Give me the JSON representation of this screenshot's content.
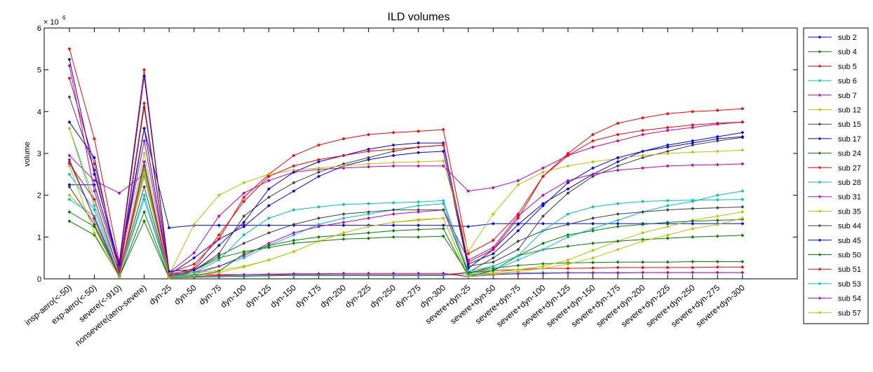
{
  "chart_data": {
    "type": "line",
    "title": "ILD volumes",
    "xlabel": "",
    "ylabel": "volume",
    "y_multiplier_label": "× 10",
    "y_multiplier_exp": "6",
    "ylim": [
      0,
      6
    ],
    "yticks": [
      0,
      1,
      2,
      3,
      4,
      5,
      6
    ],
    "grid": false,
    "legend_position": "outside-right",
    "categories": [
      "insp-aero(<-50)",
      "exp-aero(<-50)",
      "severe(<-910)",
      "nonsevere(aero-severe)",
      "dyn-25",
      "dyn-50",
      "dyn-75",
      "dyn-100",
      "dyn-125",
      "dyn-150",
      "dyn-175",
      "dyn-200",
      "dyn-225",
      "dyn-250",
      "dyn-275",
      "dyn-300",
      "severe+dyn-25",
      "severe+dyn-50",
      "severe+dyn-75",
      "severe+dyn-100",
      "severe+dyn-125",
      "severe+dyn-150",
      "severe+dyn-175",
      "severe+dyn-200",
      "severe+dyn-225",
      "severe+dyn-250",
      "severe+dyn-275",
      "severe+dyn-300"
    ],
    "series": [
      {
        "name": "sub 2",
        "color": "#0000ff",
        "values": [
          2.25,
          2.25,
          0.3,
          3.6,
          1.22,
          1.28,
          1.28,
          1.28,
          1.28,
          1.28,
          1.28,
          1.28,
          1.28,
          1.28,
          1.28,
          1.28,
          1.25,
          1.32,
          1.32,
          1.32,
          1.32,
          1.32,
          1.32,
          1.32,
          1.32,
          1.32,
          1.32,
          1.32
        ]
      },
      {
        "name": "sub 4",
        "color": "#008000",
        "values": [
          1.38,
          1.05,
          0.05,
          1.38,
          0.02,
          0.04,
          0.05,
          0.06,
          0.07,
          0.08,
          0.08,
          0.08,
          0.08,
          0.08,
          0.08,
          0.08,
          0.15,
          0.25,
          0.32,
          0.36,
          0.38,
          0.39,
          0.4,
          0.4,
          0.4,
          0.41,
          0.41,
          0.41
        ]
      },
      {
        "name": "sub 5",
        "color": "#ff0000",
        "values": [
          5.5,
          3.35,
          0.4,
          5.0,
          0.08,
          0.1,
          0.1,
          0.1,
          0.1,
          0.1,
          0.1,
          0.1,
          0.1,
          0.1,
          0.1,
          0.1,
          0.15,
          0.2,
          0.22,
          0.25,
          0.25,
          0.26,
          0.27,
          0.27,
          0.27,
          0.27,
          0.28,
          0.28
        ]
      },
      {
        "name": "sub 6",
        "color": "#00bfbf",
        "values": [
          2.5,
          1.65,
          0.08,
          2.0,
          0.05,
          0.06,
          0.07,
          0.08,
          0.08,
          0.09,
          0.09,
          0.09,
          0.09,
          0.09,
          0.09,
          0.09,
          0.1,
          0.12,
          0.14,
          0.15,
          0.15,
          0.15,
          0.15,
          0.15,
          0.15,
          0.15,
          0.15,
          0.15
        ]
      },
      {
        "name": "sub 7",
        "color": "#bf00bf",
        "values": [
          2.95,
          2.35,
          2.05,
          2.5,
          0.15,
          0.62,
          1.5,
          2.05,
          2.35,
          2.55,
          2.62,
          2.65,
          2.68,
          2.7,
          2.7,
          2.7,
          2.1,
          2.18,
          2.35,
          2.65,
          2.95,
          3.15,
          3.3,
          3.45,
          3.55,
          3.62,
          3.7,
          3.75
        ]
      },
      {
        "name": "sub 12",
        "color": "#bfbf00",
        "values": [
          2.0,
          1.4,
          0.06,
          2.6,
          0.06,
          0.15,
          0.2,
          0.3,
          0.45,
          0.65,
          0.9,
          1.1,
          1.25,
          1.35,
          1.42,
          1.45,
          0.08,
          0.15,
          0.22,
          0.3,
          0.45,
          0.68,
          0.9,
          1.1,
          1.25,
          1.4,
          1.5,
          1.6
        ]
      },
      {
        "name": "sub 15",
        "color": "#404040",
        "values": [
          4.35,
          2.6,
          0.2,
          4.1,
          0.12,
          0.2,
          0.6,
          1.5,
          1.95,
          2.3,
          2.55,
          2.75,
          2.9,
          3.05,
          3.15,
          3.2,
          0.3,
          0.4,
          0.7,
          1.5,
          2.05,
          2.45,
          2.7,
          2.9,
          3.05,
          3.2,
          3.3,
          3.38
        ]
      },
      {
        "name": "sub 17",
        "color": "#0000ff",
        "values": [
          3.75,
          2.9,
          0.15,
          3.6,
          0.1,
          0.5,
          0.95,
          1.25,
          1.75,
          2.1,
          2.45,
          2.7,
          2.85,
          2.95,
          3.02,
          3.05,
          0.25,
          0.7,
          1.3,
          1.8,
          2.15,
          2.5,
          2.8,
          3.05,
          3.2,
          3.3,
          3.4,
          3.5
        ]
      },
      {
        "name": "sub 24",
        "color": "#008000",
        "values": [
          2.85,
          1.45,
          0.1,
          2.7,
          0.04,
          0.2,
          0.5,
          0.65,
          0.75,
          0.85,
          0.9,
          0.95,
          0.97,
          1.0,
          1.0,
          1.02,
          0.12,
          0.3,
          0.55,
          0.7,
          0.78,
          0.85,
          0.9,
          0.94,
          0.97,
          1.0,
          1.02,
          1.04
        ]
      },
      {
        "name": "sub 27",
        "color": "#ff0000",
        "values": [
          4.8,
          2.75,
          0.28,
          4.2,
          0.15,
          0.35,
          0.95,
          1.95,
          2.5,
          2.95,
          3.2,
          3.35,
          3.45,
          3.5,
          3.53,
          3.57,
          0.6,
          0.92,
          1.55,
          2.45,
          3.0,
          3.45,
          3.72,
          3.85,
          3.95,
          4.0,
          4.03,
          4.07
        ]
      },
      {
        "name": "sub 28",
        "color": "#00bfbf",
        "values": [
          3.6,
          1.75,
          0.15,
          2.45,
          0.05,
          0.1,
          0.3,
          0.5,
          0.8,
          1.05,
          1.3,
          1.45,
          1.55,
          1.65,
          1.75,
          1.8,
          0.1,
          0.2,
          0.45,
          0.7,
          1.0,
          1.2,
          1.4,
          1.6,
          1.75,
          1.85,
          2.0,
          2.1
        ]
      },
      {
        "name": "sub 31",
        "color": "#bf00bf",
        "values": [
          5.1,
          2.1,
          0.25,
          3.3,
          0.1,
          0.15,
          0.3,
          0.55,
          0.85,
          1.1,
          1.25,
          1.35,
          1.45,
          1.55,
          1.6,
          1.65,
          0.45,
          0.75,
          1.5,
          2.0,
          2.35,
          2.5,
          2.6,
          2.65,
          2.7,
          2.72,
          2.73,
          2.75
        ]
      },
      {
        "name": "sub 35",
        "color": "#bfbf00",
        "values": [
          3.6,
          1.9,
          0.12,
          3.0,
          0.1,
          1.3,
          2.0,
          2.3,
          2.5,
          2.6,
          2.65,
          2.7,
          2.75,
          2.78,
          2.8,
          2.82,
          0.65,
          1.55,
          2.25,
          2.55,
          2.7,
          2.8,
          2.88,
          2.95,
          3.0,
          3.03,
          3.05,
          3.08
        ]
      },
      {
        "name": "sub 44",
        "color": "#404040",
        "values": [
          2.2,
          1.3,
          0.1,
          2.2,
          0.05,
          0.2,
          0.55,
          0.85,
          1.1,
          1.3,
          1.45,
          1.55,
          1.6,
          1.65,
          1.65,
          1.65,
          0.15,
          0.5,
          0.9,
          1.15,
          1.3,
          1.45,
          1.55,
          1.6,
          1.65,
          1.68,
          1.7,
          1.72
        ]
      },
      {
        "name": "sub 45",
        "color": "#0000ff",
        "values": [
          5.25,
          2.5,
          0.35,
          4.85,
          0.18,
          0.22,
          0.8,
          1.35,
          2.15,
          2.55,
          2.8,
          2.95,
          3.1,
          3.2,
          3.25,
          3.25,
          0.35,
          0.6,
          1.15,
          1.75,
          2.3,
          2.65,
          2.9,
          3.05,
          3.15,
          3.25,
          3.35,
          3.4
        ]
      },
      {
        "name": "sub 50",
        "color": "#008000",
        "values": [
          1.6,
          1.25,
          0.05,
          1.6,
          0.02,
          0.08,
          0.18,
          0.6,
          0.8,
          0.92,
          1.0,
          1.05,
          1.1,
          1.15,
          1.18,
          1.2,
          0.05,
          0.2,
          0.55,
          0.85,
          1.05,
          1.15,
          1.25,
          1.3,
          1.35,
          1.38,
          1.4,
          1.42
        ]
      },
      {
        "name": "sub 51",
        "color": "#ff0000",
        "values": [
          2.75,
          1.9,
          0.15,
          2.5,
          0.08,
          0.25,
          1.05,
          1.85,
          2.45,
          2.7,
          2.85,
          2.95,
          3.05,
          3.1,
          3.15,
          3.2,
          0.4,
          0.7,
          1.45,
          2.45,
          2.95,
          3.3,
          3.45,
          3.55,
          3.62,
          3.68,
          3.72,
          3.75
        ]
      },
      {
        "name": "sub 53",
        "color": "#00bfbf",
        "values": [
          1.9,
          1.5,
          0.1,
          1.9,
          0.05,
          0.15,
          0.45,
          1.05,
          1.45,
          1.65,
          1.72,
          1.78,
          1.8,
          1.82,
          1.84,
          1.87,
          0.18,
          0.3,
          0.55,
          1.15,
          1.55,
          1.72,
          1.8,
          1.85,
          1.87,
          1.88,
          1.89,
          1.9
        ]
      },
      {
        "name": "sub 54",
        "color": "#bf00bf",
        "values": [
          2.8,
          1.45,
          0.06,
          2.8,
          0.03,
          0.06,
          0.08,
          0.1,
          0.11,
          0.12,
          0.12,
          0.13,
          0.13,
          0.13,
          0.13,
          0.13,
          0.05,
          0.1,
          0.12,
          0.13,
          0.14,
          0.14,
          0.14,
          0.15,
          0.15,
          0.15,
          0.15,
          0.15
        ]
      },
      {
        "name": "sub 57",
        "color": "#bfbf00",
        "values": [
          2.7,
          1.1,
          0.04,
          2.5,
          0.02,
          0.07,
          0.15,
          0.28,
          0.45,
          0.65,
          0.9,
          1.1,
          1.25,
          1.35,
          1.4,
          1.45,
          0.05,
          0.12,
          0.18,
          0.25,
          0.35,
          0.5,
          0.7,
          0.9,
          1.05,
          1.2,
          1.3,
          1.45
        ]
      }
    ]
  }
}
